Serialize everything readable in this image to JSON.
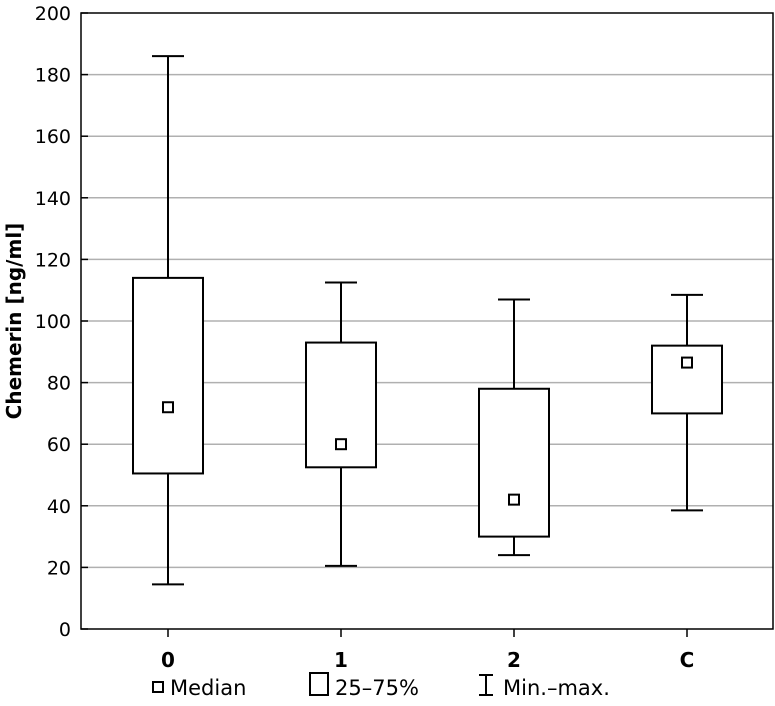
{
  "chart_data": {
    "type": "boxplot",
    "title": "",
    "xlabel": "",
    "ylabel": "Chemerin [ng/ml]",
    "ylim": [
      0,
      200
    ],
    "yticks": [
      0,
      20,
      40,
      60,
      80,
      100,
      120,
      140,
      160,
      180,
      200
    ],
    "grid": "horizontal",
    "legend_position": "bottom",
    "categories": [
      "0",
      "1",
      "2",
      "C"
    ],
    "groups": [
      {
        "category": "0",
        "min": 14.5,
        "q1": 50.5,
        "median": 72,
        "q3": 114,
        "max": 186
      },
      {
        "category": "1",
        "min": 20.5,
        "q1": 52.5,
        "median": 60,
        "q3": 93,
        "max": 112.5
      },
      {
        "category": "2",
        "min": 24,
        "q1": 30,
        "median": 42,
        "q3": 78,
        "max": 107
      },
      {
        "category": "C",
        "min": 38.5,
        "q1": 70,
        "median": 86.5,
        "q3": 92,
        "max": 108.5
      }
    ],
    "legend": [
      {
        "key": "median",
        "label": "Median"
      },
      {
        "key": "box",
        "label": "25–75%"
      },
      {
        "key": "whisker",
        "label": "Min.–max."
      }
    ],
    "colors": {
      "stroke": "#000000",
      "grid": "#b0b0b0",
      "fill": "#ffffff"
    }
  }
}
